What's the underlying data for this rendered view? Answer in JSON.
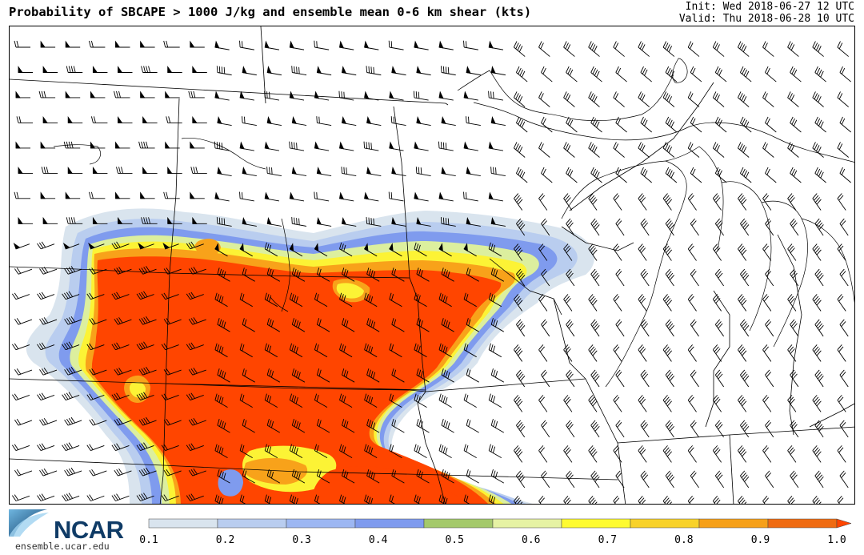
{
  "title": "Probability of SBCAPE > 1000 J/kg and ensemble mean 0-6 km shear (kts)",
  "init": "Init: Wed 2018-06-27 12 UTC",
  "valid": "Valid: Thu 2018-06-28 10 UTC",
  "logo": {
    "name": "NCAR",
    "url": "ensemble.ucar.edu"
  },
  "colorbar": {
    "levels": [
      "0.1",
      "0.2",
      "0.3",
      "0.4",
      "0.5",
      "0.6",
      "0.7",
      "0.8",
      "0.9",
      "1.0"
    ],
    "colors": [
      "#d9e4ee",
      "#b9cdef",
      "#9db7f2",
      "#7f9bee",
      "#a4c96b",
      "#e6f2a4",
      "#fefb31",
      "#f8d22a",
      "#f6a019",
      "#ef6b12"
    ],
    "over_color": "#ff4500"
  },
  "map": {
    "fill_colors": {
      "high": "#ff4500",
      "orange": "#f8a21a",
      "yellow": "#fcf335",
      "lightgreen": "#dcef9e",
      "blue": "#7f9bee",
      "lightblue": "#b9cdef",
      "paleblue": "#d9e4ee"
    },
    "wind_barb_units": "kts"
  }
}
